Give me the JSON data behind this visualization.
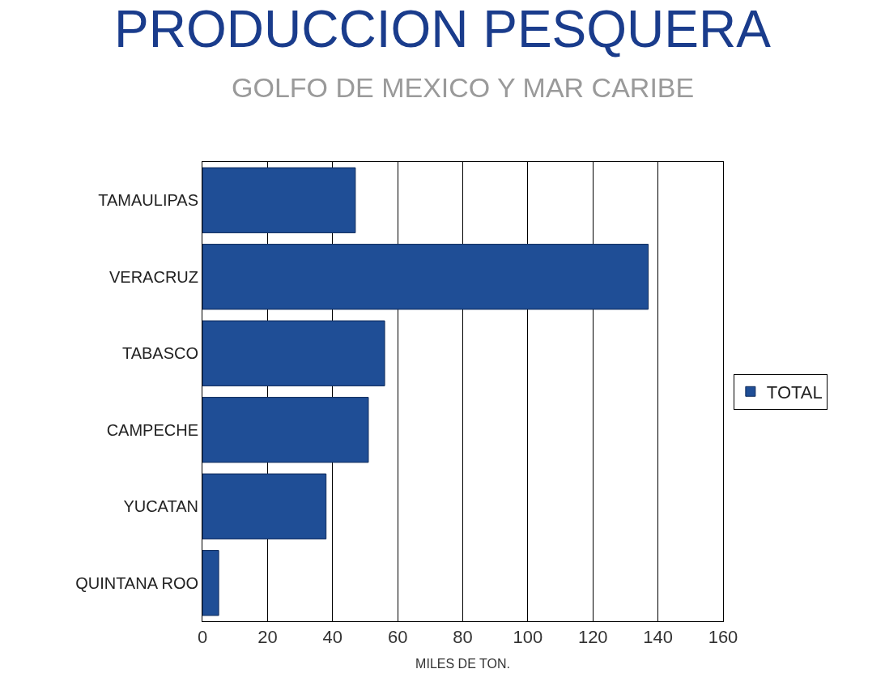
{
  "chart_data": {
    "type": "bar",
    "orientation": "horizontal",
    "title": "PRODUCCION PESQUERA",
    "subtitle": "GOLFO DE MEXICO Y MAR CARIBE",
    "xlabel": "MILES DE TON.",
    "categories": [
      "TAMAULIPAS",
      "VERACRUZ",
      "TABASCO",
      "CAMPECHE",
      "YUCATAN",
      "QUINTANA ROO"
    ],
    "series": [
      {
        "name": "TOTAL",
        "color": "#1f4e96",
        "values": [
          47,
          137,
          56,
          51,
          38,
          5
        ]
      }
    ],
    "xlim": [
      0,
      160
    ],
    "xticks": [
      0,
      20,
      40,
      60,
      80,
      100,
      120,
      140,
      160
    ],
    "grid": "x",
    "legend": "right"
  }
}
